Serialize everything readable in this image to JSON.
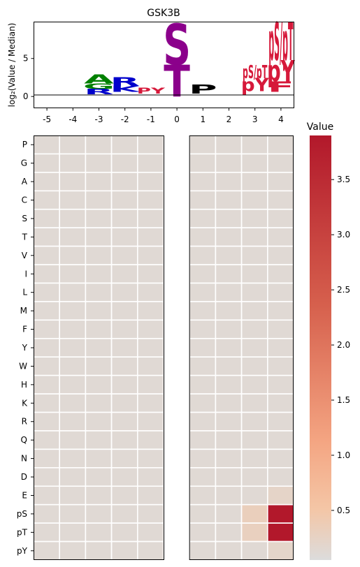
{
  "chart_data": [
    {
      "type": "sequence-logo",
      "title": "GSK3B",
      "ylabel": "log₂(Value / Median)",
      "ylim": [
        -1.5,
        9.8
      ],
      "yticks": [
        0,
        5
      ],
      "positions": [
        "-5",
        "-4",
        "-3",
        "-2",
        "-1",
        "0",
        "1",
        "2",
        "3",
        "4"
      ],
      "letters": [
        {
          "pos": "-3",
          "text": "A",
          "color": "#008000",
          "y0": 1.7,
          "y1": 2.9
        },
        {
          "pos": "-3",
          "text": "G",
          "color": "#008000",
          "y0": 1.0,
          "y1": 1.7
        },
        {
          "pos": "-3",
          "text": "R",
          "color": "#0000cc",
          "y0": 0.3,
          "y1": 1.0
        },
        {
          "pos": "-2",
          "text": "R",
          "color": "#0000cc",
          "y0": 1.4,
          "y1": 2.5
        },
        {
          "pos": "-2",
          "text": "K",
          "color": "#0000cc",
          "y0": 0.6,
          "y1": 1.4
        },
        {
          "pos": "-1",
          "text": "PY",
          "color": "#d6193a",
          "y0": 0.4,
          "y1": 1.2
        },
        {
          "pos": "0",
          "text": "S",
          "color": "#8b008b",
          "y0": 4.2,
          "y1": 9.6
        },
        {
          "pos": "0",
          "text": "T",
          "color": "#8b008b",
          "y0": 0.0,
          "y1": 4.2
        },
        {
          "pos": "1",
          "text": "P",
          "color": "#000000",
          "y0": 0.4,
          "y1": 1.6
        },
        {
          "pos": "3",
          "text": "pS/pT",
          "color": "#d6193a",
          "y0": 2.4,
          "y1": 4.1
        },
        {
          "pos": "3",
          "text": "pY",
          "color": "#d6193a",
          "y0": 0.7,
          "y1": 2.4
        },
        {
          "pos": "4",
          "text": "pS/pT",
          "color": "#d6193a",
          "y0": 4.8,
          "y1": 9.8
        },
        {
          "pos": "4",
          "text": "pY",
          "color": "#d6193a",
          "y0": 2.0,
          "y1": 4.8
        },
        {
          "pos": "4",
          "text": "F",
          "color": "#d6193a",
          "y0": 0.6,
          "y1": 2.0
        }
      ]
    },
    {
      "type": "heatmap",
      "columns": [
        "-5",
        "-4",
        "-3",
        "-2",
        "-1",
        "0",
        "1",
        "2",
        "3",
        "4"
      ],
      "rows": [
        "P",
        "G",
        "A",
        "C",
        "S",
        "T",
        "V",
        "I",
        "L",
        "M",
        "F",
        "Y",
        "W",
        "H",
        "K",
        "R",
        "Q",
        "N",
        "D",
        "E",
        "pS",
        "pT",
        "pY"
      ],
      "blank_column": "0",
      "default_value": 0.12,
      "cells": [
        {
          "row": "pS",
          "col": "4",
          "value": 3.9
        },
        {
          "row": "pT",
          "col": "4",
          "value": 3.9
        },
        {
          "row": "pS",
          "col": "3",
          "value": 0.32
        },
        {
          "row": "pT",
          "col": "3",
          "value": 0.3
        },
        {
          "row": "E",
          "col": "4",
          "value": 0.22
        },
        {
          "row": "pY",
          "col": "4",
          "value": 0.2
        }
      ],
      "colorbar": {
        "title": "Value",
        "range": [
          0.05,
          3.9
        ],
        "ticks": [
          0.5,
          1.0,
          1.5,
          2.0,
          2.5,
          3.0,
          3.5
        ],
        "tick_labels": [
          "0.5",
          "1.0",
          "1.5",
          "2.0",
          "2.5",
          "3.0",
          "3.5"
        ],
        "colors": [
          "#dcdcdc",
          "#f4c6a6",
          "#f4a582",
          "#d6604d",
          "#b2182b"
        ]
      }
    }
  ]
}
